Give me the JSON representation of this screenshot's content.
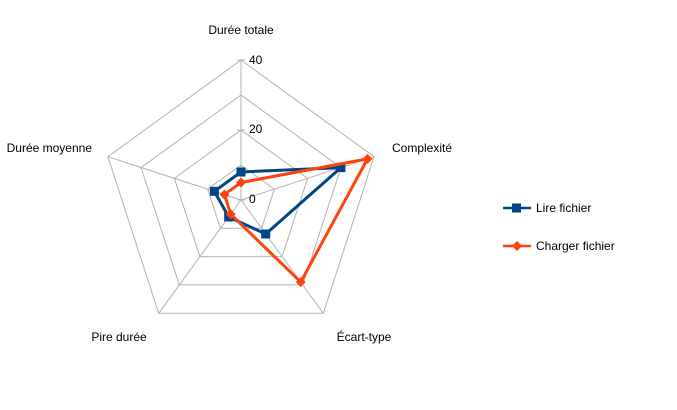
{
  "chart_data": {
    "type": "radar",
    "title": "",
    "axes": [
      "Durée totale",
      "Complexité",
      "Écart-type",
      "Pire durée",
      "Durée moyenne"
    ],
    "rlim": [
      0,
      40
    ],
    "ticks": [
      "0",
      "20",
      "40"
    ],
    "tick_values": [
      0,
      20,
      40
    ],
    "grid": true,
    "legend_position": "right",
    "series": [
      {
        "name": "Lire fichier",
        "values": [
          8,
          30,
          12,
          6,
          8
        ],
        "color": "#004586",
        "marker": "square"
      },
      {
        "name": "Charger fichier",
        "values": [
          5,
          38,
          29,
          5,
          5
        ],
        "color": "#ff420e",
        "marker": "diamond"
      }
    ]
  }
}
